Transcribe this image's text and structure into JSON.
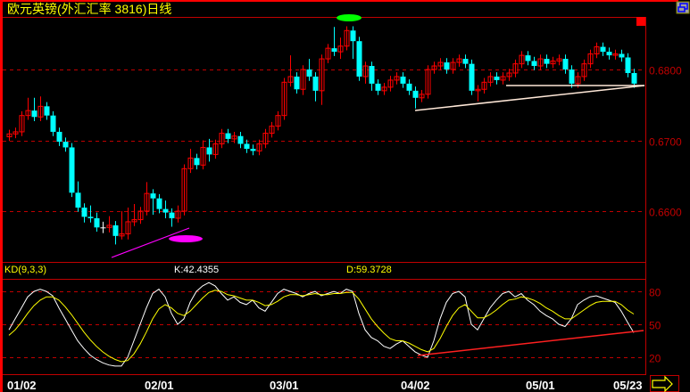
{
  "title": "欧元英镑(外汇汇率 3816)日线",
  "indicator": {
    "name": "KD(9,3,3)",
    "k_label": "K:42.4355",
    "d_label": "D:59.3728"
  },
  "colors": {
    "up": "#ff0000",
    "down": "#00ffff",
    "doji": "#ffffff",
    "grid": "#c00000",
    "k_line": "#ffffff",
    "d_line": "#ffff00",
    "title": "#ffff00",
    "axis_text": "#c00000"
  },
  "icons": {
    "window": "restore-window-icon",
    "scroll": "arrow-right-icon"
  },
  "chart_data": [
    {
      "type": "candlestick",
      "title": "欧元英镑(外汇汇率 3816)日线",
      "y_ticks": [
        0.66,
        0.67,
        0.68
      ],
      "y_tick_labels": [
        "0.6600",
        "0.6700",
        "0.6800"
      ],
      "ylim": [
        0.653,
        0.687
      ],
      "grid": true,
      "x_tick_labels": [
        "01/02",
        "02/01",
        "03/01",
        "04/02",
        "05/01",
        "05/23"
      ],
      "x_tick_index": [
        2,
        24,
        44,
        65,
        85,
        99
      ],
      "ohlc": [
        [
          0.6705,
          0.6715,
          0.6699,
          0.6709
        ],
        [
          0.6709,
          0.6718,
          0.6703,
          0.6712
        ],
        [
          0.6712,
          0.6741,
          0.6706,
          0.6735
        ],
        [
          0.6735,
          0.676,
          0.6729,
          0.6742
        ],
        [
          0.6742,
          0.676,
          0.6727,
          0.6733
        ],
        [
          0.6733,
          0.6762,
          0.6727,
          0.6748
        ],
        [
          0.6748,
          0.6754,
          0.6729,
          0.6735
        ],
        [
          0.6735,
          0.6741,
          0.6706,
          0.6712
        ],
        [
          0.6712,
          0.6718,
          0.6692,
          0.6698
        ],
        [
          0.6698,
          0.6704,
          0.6684,
          0.669
        ],
        [
          0.669,
          0.6696,
          0.662,
          0.6626
        ],
        [
          0.6626,
          0.6642,
          0.6599,
          0.6605
        ],
        [
          0.6605,
          0.6611,
          0.6584,
          0.6592
        ],
        [
          0.6592,
          0.6608,
          0.6584,
          0.659
        ],
        [
          0.659,
          0.6598,
          0.6571,
          0.6577
        ],
        [
          0.6577,
          0.6585,
          0.6569,
          0.6577
        ],
        [
          0.6577,
          0.6593,
          0.657,
          0.658
        ],
        [
          0.658,
          0.6586,
          0.6553,
          0.6565
        ],
        [
          0.6565,
          0.66,
          0.656,
          0.6568
        ],
        [
          0.6568,
          0.6605,
          0.656,
          0.6585
        ],
        [
          0.6585,
          0.661,
          0.6579,
          0.6588
        ],
        [
          0.6588,
          0.6606,
          0.6582,
          0.66
        ],
        [
          0.66,
          0.6641,
          0.6594,
          0.6625
        ],
        [
          0.6625,
          0.6631,
          0.6595,
          0.6618
        ],
        [
          0.6618,
          0.6624,
          0.6597,
          0.6603
        ],
        [
          0.6603,
          0.6615,
          0.659,
          0.6598
        ],
        [
          0.6598,
          0.6604,
          0.6578,
          0.659
        ],
        [
          0.659,
          0.6608,
          0.6584,
          0.66
        ],
        [
          0.66,
          0.6666,
          0.6594,
          0.666
        ],
        [
          0.666,
          0.6688,
          0.6654,
          0.6675
        ],
        [
          0.6675,
          0.6681,
          0.6659,
          0.6665
        ],
        [
          0.6665,
          0.67,
          0.6659,
          0.669
        ],
        [
          0.669,
          0.6702,
          0.667,
          0.668
        ],
        [
          0.668,
          0.6701,
          0.6674,
          0.6695
        ],
        [
          0.6695,
          0.6716,
          0.6689,
          0.671
        ],
        [
          0.671,
          0.6716,
          0.6696,
          0.6702
        ],
        [
          0.6702,
          0.6712,
          0.6696,
          0.6706
        ],
        [
          0.6706,
          0.6712,
          0.6689,
          0.6695
        ],
        [
          0.6695,
          0.6701,
          0.6682,
          0.6688
        ],
        [
          0.6688,
          0.6694,
          0.6679,
          0.6685
        ],
        [
          0.6685,
          0.6701,
          0.6679,
          0.6695
        ],
        [
          0.6695,
          0.6716,
          0.6689,
          0.671
        ],
        [
          0.671,
          0.6726,
          0.6704,
          0.672
        ],
        [
          0.672,
          0.6741,
          0.6714,
          0.6735
        ],
        [
          0.6735,
          0.6788,
          0.6729,
          0.6782
        ],
        [
          0.6782,
          0.682,
          0.6776,
          0.679
        ],
        [
          0.679,
          0.6796,
          0.6766,
          0.6772
        ],
        [
          0.6772,
          0.6806,
          0.6764,
          0.68
        ],
        [
          0.68,
          0.6815,
          0.6784,
          0.679
        ],
        [
          0.679,
          0.6796,
          0.6755,
          0.677
        ],
        [
          0.677,
          0.6821,
          0.675,
          0.6815
        ],
        [
          0.6815,
          0.6836,
          0.6809,
          0.683
        ],
        [
          0.683,
          0.686,
          0.6819,
          0.6825
        ],
        [
          0.6825,
          0.6845,
          0.6815,
          0.6833
        ],
        [
          0.6833,
          0.6861,
          0.6827,
          0.6855
        ],
        [
          0.6855,
          0.6861,
          0.6815,
          0.684
        ],
        [
          0.684,
          0.6846,
          0.6784,
          0.679
        ],
        [
          0.679,
          0.6811,
          0.678,
          0.6805
        ],
        [
          0.6805,
          0.6811,
          0.677,
          0.678
        ],
        [
          0.678,
          0.6786,
          0.6764,
          0.677
        ],
        [
          0.677,
          0.6781,
          0.6764,
          0.6775
        ],
        [
          0.6775,
          0.6791,
          0.6769,
          0.6785
        ],
        [
          0.6785,
          0.6796,
          0.6779,
          0.679
        ],
        [
          0.679,
          0.6796,
          0.6774,
          0.678
        ],
        [
          0.678,
          0.6786,
          0.6764,
          0.677
        ],
        [
          0.677,
          0.6776,
          0.6745,
          0.676
        ],
        [
          0.676,
          0.6771,
          0.6754,
          0.6765
        ],
        [
          0.6765,
          0.6806,
          0.6759,
          0.68
        ],
        [
          0.68,
          0.6811,
          0.6794,
          0.6805
        ],
        [
          0.6805,
          0.6816,
          0.6799,
          0.681
        ],
        [
          0.681,
          0.6816,
          0.6794,
          0.68
        ],
        [
          0.68,
          0.6816,
          0.6794,
          0.681
        ],
        [
          0.681,
          0.6821,
          0.6804,
          0.6815
        ],
        [
          0.6815,
          0.6821,
          0.6802,
          0.6808
        ],
        [
          0.6808,
          0.6814,
          0.6764,
          0.677
        ],
        [
          0.677,
          0.6778,
          0.6755,
          0.6772
        ],
        [
          0.6772,
          0.6788,
          0.6766,
          0.6782
        ],
        [
          0.6782,
          0.6796,
          0.6776,
          0.679
        ],
        [
          0.679,
          0.6796,
          0.6779,
          0.6785
        ],
        [
          0.6785,
          0.6796,
          0.6779,
          0.679
        ],
        [
          0.679,
          0.6801,
          0.6784,
          0.6795
        ],
        [
          0.6795,
          0.6814,
          0.6789,
          0.6808
        ],
        [
          0.6808,
          0.6826,
          0.6802,
          0.682
        ],
        [
          0.682,
          0.6826,
          0.6806,
          0.6812
        ],
        [
          0.6812,
          0.6818,
          0.6799,
          0.6805
        ],
        [
          0.6805,
          0.6821,
          0.6799,
          0.6815
        ],
        [
          0.6815,
          0.6821,
          0.6802,
          0.6808
        ],
        [
          0.6808,
          0.6818,
          0.6802,
          0.6812
        ],
        [
          0.6812,
          0.6821,
          0.6806,
          0.6815
        ],
        [
          0.6815,
          0.6821,
          0.6794,
          0.68
        ],
        [
          0.68,
          0.6806,
          0.6774,
          0.678
        ],
        [
          0.678,
          0.6796,
          0.6774,
          0.679
        ],
        [
          0.679,
          0.6814,
          0.6784,
          0.6808
        ],
        [
          0.6808,
          0.6828,
          0.6802,
          0.6822
        ],
        [
          0.6822,
          0.6838,
          0.6816,
          0.6832
        ],
        [
          0.6832,
          0.6838,
          0.6819,
          0.6825
        ],
        [
          0.6825,
          0.6831,
          0.6814,
          0.682
        ],
        [
          0.682,
          0.6828,
          0.6814,
          0.6822
        ],
        [
          0.6822,
          0.6828,
          0.6811,
          0.6817
        ],
        [
          0.6817,
          0.6823,
          0.6789,
          0.6795
        ],
        [
          0.6795,
          0.6801,
          0.6774,
          0.678
        ]
      ]
    },
    {
      "type": "line",
      "title": "KD(9,3,3)",
      "y_ticks": [
        20,
        50,
        80
      ],
      "y_tick_labels": [
        "20",
        "50",
        "80"
      ],
      "ylim": [
        0,
        100
      ],
      "grid": true,
      "series": [
        {
          "name": "K",
          "values": [
            45,
            55,
            65,
            75,
            80,
            82,
            80,
            76,
            65,
            55,
            45,
            35,
            28,
            22,
            18,
            15,
            13,
            12,
            12,
            20,
            35,
            50,
            65,
            78,
            82,
            75,
            60,
            50,
            55,
            70,
            80,
            85,
            88,
            85,
            78,
            72,
            75,
            70,
            68,
            72,
            65,
            62,
            70,
            78,
            82,
            80,
            78,
            75,
            78,
            80,
            76,
            78,
            80,
            78,
            82,
            80,
            60,
            45,
            38,
            35,
            30,
            28,
            32,
            35,
            30,
            25,
            22,
            20,
            35,
            55,
            70,
            78,
            80,
            75,
            50,
            45,
            55,
            65,
            72,
            78,
            80,
            75,
            78,
            72,
            68,
            62,
            58,
            55,
            50,
            48,
            55,
            68,
            72,
            75,
            76,
            74,
            72,
            70,
            62,
            52,
            42.4355
          ]
        },
        {
          "name": "D",
          "values": [
            40,
            45,
            52,
            60,
            67,
            72,
            75,
            75,
            72,
            66,
            59,
            51,
            43,
            36,
            30,
            25,
            21,
            18,
            16,
            17,
            23,
            32,
            43,
            55,
            64,
            68,
            65,
            60,
            58,
            62,
            68,
            74,
            79,
            81,
            80,
            77,
            76,
            74,
            72,
            72,
            70,
            67,
            68,
            71,
            75,
            77,
            77,
            76,
            77,
            78,
            77,
            77,
            78,
            78,
            79,
            79,
            73,
            64,
            55,
            48,
            42,
            37,
            35,
            35,
            33,
            30,
            27,
            25,
            28,
            37,
            48,
            58,
            65,
            68,
            62,
            56,
            56,
            59,
            63,
            68,
            72,
            73,
            75,
            74,
            72,
            69,
            65,
            62,
            58,
            55,
            55,
            59,
            63,
            67,
            70,
            71,
            71,
            71,
            68,
            63,
            59.3728
          ]
        }
      ]
    }
  ]
}
